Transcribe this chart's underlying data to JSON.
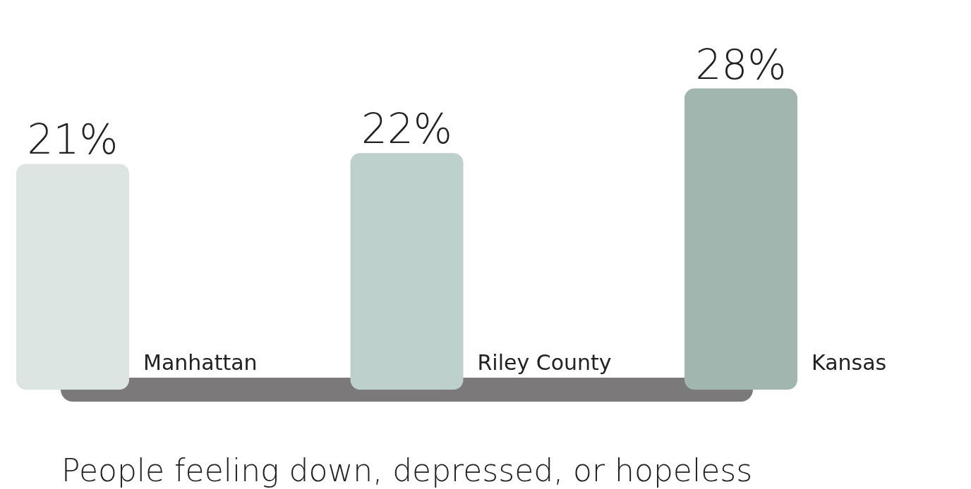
{
  "chart_data": {
    "type": "bar",
    "xlabel": "People feeling down, depressed, or hopeless",
    "categories": [
      "Manhattan",
      "Riley County",
      "Kansas"
    ],
    "values": [
      21,
      22,
      28
    ],
    "colors": [
      "#dde5e2",
      "#bed0cb",
      "#a0b6af"
    ],
    "value_labels": [
      "21%",
      "22%",
      "28%"
    ]
  }
}
